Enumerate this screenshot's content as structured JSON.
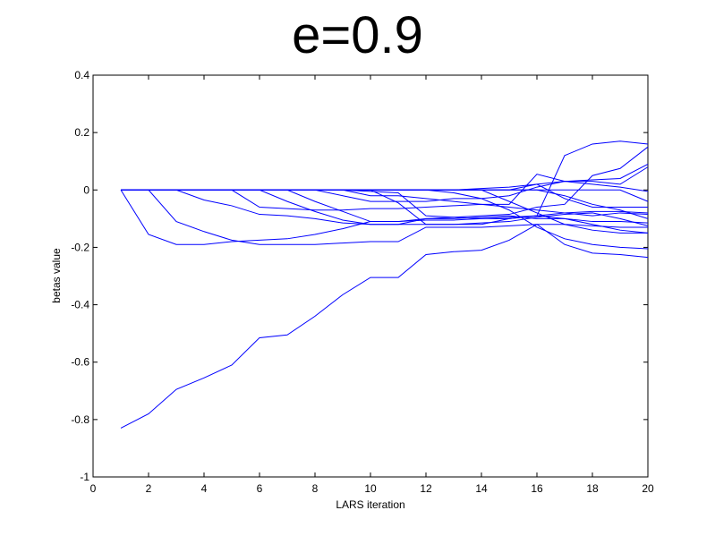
{
  "chart_data": {
    "type": "line",
    "title": "e=0.9",
    "xlabel": "LARS iteration",
    "ylabel": "betas value",
    "xlim": [
      0,
      20
    ],
    "ylim": [
      -1,
      0.4
    ],
    "xticks": [
      0,
      2,
      4,
      6,
      8,
      10,
      12,
      14,
      16,
      18,
      20
    ],
    "yticks": [
      -1,
      -0.8,
      -0.6,
      -0.4,
      -0.2,
      0,
      0.2,
      0.4
    ],
    "xtick_labels": [
      "0",
      "2",
      "4",
      "6",
      "8",
      "10",
      "12",
      "14",
      "16",
      "18",
      "20"
    ],
    "ytick_labels": [
      "-1",
      "-0.8",
      "-0.6",
      "-0.4",
      "-0.2",
      "0",
      "0.2",
      "0.4"
    ],
    "grid": false,
    "line_color": "#0000ff",
    "x": [
      1,
      2,
      3,
      4,
      5,
      6,
      7,
      8,
      9,
      10,
      11,
      12,
      13,
      14,
      15,
      16,
      17,
      18,
      19,
      20
    ],
    "series": [
      {
        "values": [
          -0.83,
          -0.78,
          -0.695,
          -0.655,
          -0.61,
          -0.515,
          -0.505,
          -0.44,
          -0.365,
          -0.305,
          -0.305,
          -0.225,
          -0.215,
          -0.21,
          -0.175,
          -0.12,
          -0.19,
          -0.22,
          -0.225,
          -0.235
        ]
      },
      {
        "values": [
          0,
          -0.155,
          -0.19,
          -0.19,
          -0.18,
          -0.175,
          -0.17,
          -0.155,
          -0.135,
          -0.11,
          -0.11,
          -0.105,
          -0.105,
          -0.1,
          -0.1,
          -0.09,
          -0.08,
          -0.075,
          -0.075,
          -0.08
        ]
      },
      {
        "values": [
          0,
          0,
          -0.11,
          -0.145,
          -0.175,
          -0.19,
          -0.19,
          -0.19,
          -0.185,
          -0.18,
          -0.18,
          -0.13,
          -0.13,
          -0.13,
          -0.125,
          -0.12,
          -0.12,
          -0.125,
          -0.13,
          -0.13
        ]
      },
      {
        "values": [
          0,
          0,
          0,
          -0.035,
          -0.055,
          -0.085,
          -0.09,
          -0.1,
          -0.115,
          -0.12,
          -0.12,
          -0.1,
          -0.1,
          -0.095,
          -0.09,
          -0.1,
          -0.1,
          -0.11,
          -0.11,
          -0.115
        ]
      },
      {
        "values": [
          0,
          0,
          0,
          0,
          0,
          -0.06,
          -0.065,
          -0.07,
          -0.07,
          -0.065,
          -0.065,
          -0.06,
          -0.055,
          -0.05,
          -0.05,
          0.055,
          0.03,
          0.035,
          0.04,
          0.09
        ]
      },
      {
        "values": [
          0,
          0,
          0,
          0,
          0,
          0,
          -0.04,
          -0.075,
          -0.105,
          -0.12,
          -0.12,
          -0.12,
          -0.12,
          -0.12,
          -0.1,
          -0.09,
          0.12,
          0.16,
          0.17,
          0.16
        ]
      },
      {
        "values": [
          0,
          0,
          0,
          0,
          0,
          0,
          0,
          -0.04,
          -0.075,
          -0.11,
          -0.11,
          -0.1,
          -0.095,
          -0.09,
          -0.085,
          -0.06,
          -0.05,
          0.05,
          0.075,
          0.15
        ]
      },
      {
        "values": [
          0,
          0,
          0,
          0,
          0,
          0,
          0,
          0,
          -0.02,
          -0.04,
          -0.04,
          -0.04,
          -0.03,
          -0.03,
          -0.02,
          0.01,
          0.03,
          0.02,
          0.01,
          -0.005
        ]
      },
      {
        "values": [
          0,
          0,
          0,
          0,
          0,
          0,
          0,
          0,
          0,
          -0.02,
          -0.02,
          -0.03,
          -0.04,
          -0.05,
          -0.06,
          -0.07,
          -0.08,
          -0.09,
          -0.08,
          -0.085
        ]
      },
      {
        "values": [
          0,
          0,
          0,
          0,
          0,
          0,
          0,
          0,
          0,
          -0.005,
          -0.01,
          -0.09,
          -0.095,
          -0.1,
          -0.095,
          -0.09,
          -0.1,
          -0.12,
          -0.14,
          -0.15
        ]
      },
      {
        "values": [
          0,
          0,
          0,
          0,
          0,
          0,
          0,
          0,
          0,
          0,
          -0.045,
          -0.12,
          -0.12,
          -0.115,
          -0.11,
          -0.095,
          -0.085,
          -0.08,
          -0.1,
          -0.125
        ]
      },
      {
        "values": [
          0,
          0,
          0,
          0,
          0,
          0,
          0,
          0,
          0,
          0,
          0,
          0,
          -0.01,
          -0.03,
          -0.07,
          -0.13,
          -0.17,
          -0.19,
          -0.2,
          -0.205
        ]
      },
      {
        "values": [
          0,
          0,
          0,
          0,
          0,
          0,
          0,
          0,
          0,
          0,
          0,
          0,
          0,
          0.005,
          0.01,
          0.02,
          -0.03,
          -0.06,
          -0.06,
          -0.06
        ]
      },
      {
        "values": [
          0,
          0,
          0,
          0,
          0,
          0,
          0,
          0,
          0,
          0,
          0,
          0,
          0,
          0,
          -0.04,
          -0.08,
          -0.12,
          -0.14,
          -0.15,
          -0.15
        ]
      },
      {
        "values": [
          0,
          0,
          0,
          0,
          0,
          0,
          0,
          0,
          0,
          0,
          0,
          0,
          0,
          0,
          0,
          0.02,
          0.03,
          0.03,
          0.02,
          0.08
        ]
      },
      {
        "values": [
          0,
          0,
          0,
          0,
          0,
          0,
          0,
          0,
          0,
          0,
          0,
          0,
          0,
          0,
          0,
          0,
          -0.02,
          -0.05,
          -0.07,
          -0.1
        ]
      },
      {
        "values": [
          0,
          0,
          0,
          0,
          0,
          0,
          0,
          0,
          0,
          0,
          0,
          0,
          0,
          0,
          0,
          0,
          0,
          0,
          0,
          -0.04
        ]
      }
    ]
  }
}
